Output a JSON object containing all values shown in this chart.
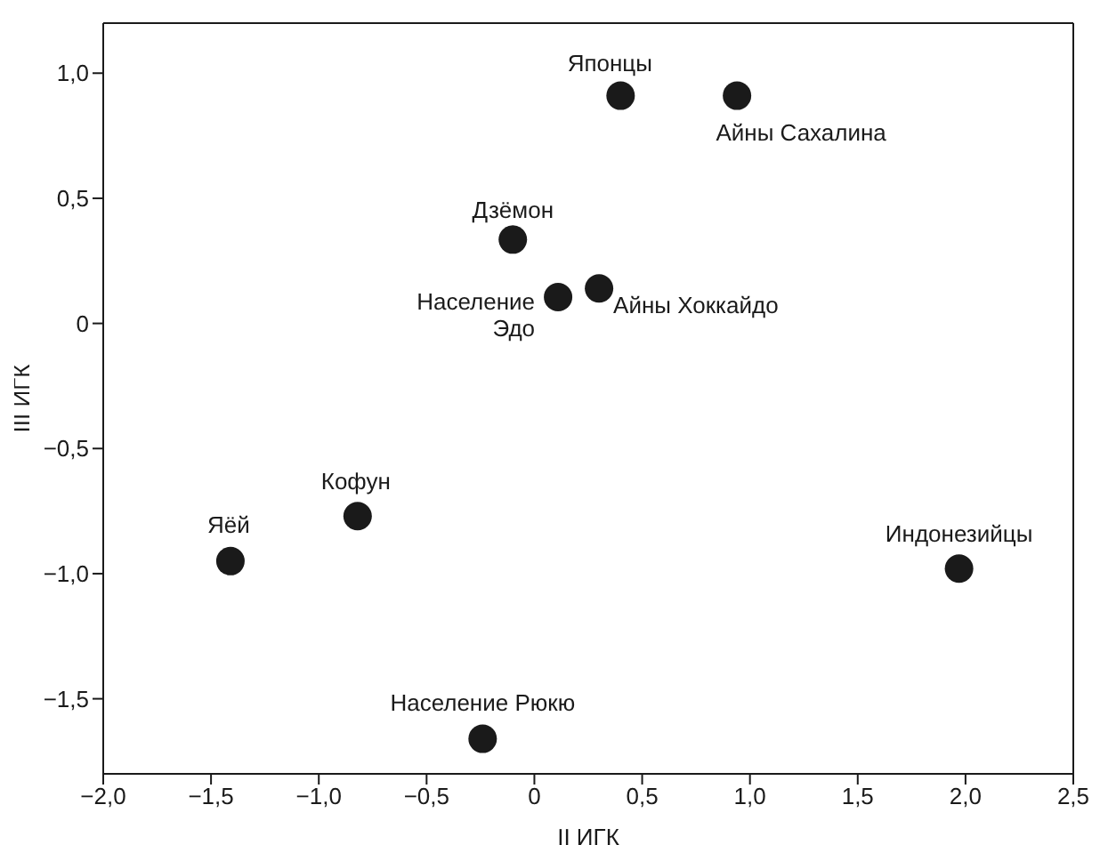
{
  "chart_data": {
    "type": "scatter",
    "xlabel": "II ИГК",
    "ylabel": "III ИГК",
    "x": [
      0.4,
      0.94,
      -0.1,
      0.11,
      0.3,
      -1.41,
      -0.82,
      1.97,
      -0.24
    ],
    "values": [
      0.91,
      0.91,
      0.335,
      0.105,
      0.14,
      -0.95,
      -0.77,
      -0.98,
      -1.66
    ],
    "color": "#1a1a1a",
    "marker": "circle",
    "grid": false,
    "legend": false,
    "xlim": [
      -2.0,
      2.5
    ],
    "xticks": [
      {
        "value": -2.0,
        "label": "−2,0"
      },
      {
        "value": -1.5,
        "label": "−1,5"
      },
      {
        "value": -1.0,
        "label": "−1,0"
      },
      {
        "value": -0.5,
        "label": "−0,5"
      },
      0,
      {
        "value": 0.5,
        "label": "0,5"
      },
      {
        "value": 1.0,
        "label": "1,0"
      },
      {
        "value": 1.5,
        "label": "1,5"
      },
      {
        "value": 2.0,
        "label": "2,0"
      },
      {
        "value": 2.5,
        "label": "2,5"
      }
    ],
    "ylim": [
      -1.8,
      1.2
    ],
    "yticks": [
      {
        "value": -1.5,
        "label": "−1,5"
      },
      {
        "value": -1.0,
        "label": "−1,0"
      },
      {
        "value": -0.5,
        "label": "−0,5"
      },
      0,
      {
        "value": 0.5,
        "label": "0,5"
      },
      {
        "value": 1.0,
        "label": "1,0"
      }
    ],
    "annotations": [
      {
        "text": "Японцы",
        "x": 0.4,
        "y": 0.91
      },
      {
        "text": "Айны Сахалина",
        "x": 0.94,
        "y": 0.91
      },
      {
        "text": "Дзёмон",
        "x": -0.1,
        "y": 0.335
      },
      {
        "text": "Население Эдо",
        "x": 0.11,
        "y": 0.105
      },
      {
        "text": "Айны Хоккайдо",
        "x": 0.3,
        "y": 0.14
      },
      {
        "text": "Яёй",
        "x": -1.41,
        "y": -0.95
      },
      {
        "text": "Кофун",
        "x": -0.82,
        "y": -0.77
      },
      {
        "text": "Индонезийцы",
        "x": 1.97,
        "y": -0.98
      },
      {
        "text": "Население Рюкю",
        "x": -0.24,
        "y": -1.66
      }
    ]
  }
}
